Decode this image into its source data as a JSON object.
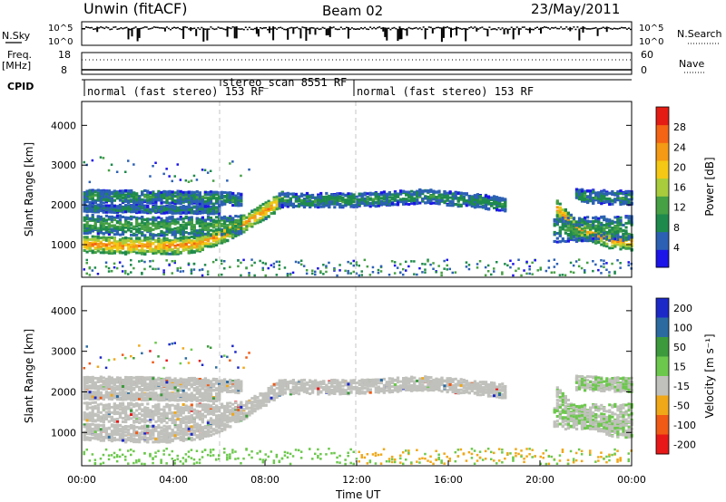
{
  "header": {
    "title": "Unwin (fitACF)",
    "beam": "Beam 02",
    "date": "23/May/2011"
  },
  "top_panels": {
    "nsky_label": "N.Sky",
    "nsearch_label": "N.Search",
    "ticks_noise": [
      "10^5",
      "10^0"
    ],
    "freq_label": "Freq.",
    "freq_unit": "[MHz]",
    "freq_ticks": [
      "18",
      "8"
    ],
    "nave_label": "Nave",
    "nave_ticks": [
      "60",
      "0"
    ],
    "cpid_label": "CPID",
    "cpid_segments": [
      {
        "label": "normal (fast stereo) 153 RF",
        "start_hour": 0,
        "end_hour": 6
      },
      {
        "label": "stereo_scan 8551 RF",
        "start_hour": 6,
        "end_hour": 12
      },
      {
        "label": "normal (fast stereo) 153 RF",
        "start_hour": 12,
        "end_hour": 24
      }
    ]
  },
  "chart_data": [
    {
      "type": "heatmap",
      "quantity": "power",
      "xlabel": "",
      "ylabel": "Slant Range [km]",
      "xlim": [
        0,
        24
      ],
      "ylim": [
        180,
        4600
      ],
      "yticks": [
        "1000",
        "2000",
        "3000",
        "4000"
      ],
      "colorbar": {
        "label": "Power [dB]",
        "ticks": [
          "4",
          "8",
          "12",
          "16",
          "20",
          "24",
          "28"
        ],
        "range": [
          0,
          32
        ]
      },
      "bands": [
        {
          "t": [
            0,
            2,
            4,
            5,
            6,
            7,
            8,
            8.7
          ],
          "r": [
            1050,
            1000,
            1000,
            1050,
            1250,
            1550,
            1900,
            2150
          ],
          "width": 260,
          "level": 26
        },
        {
          "t": [
            0,
            3,
            5.5,
            7
          ],
          "r": [
            1550,
            1500,
            1500,
            1550
          ],
          "width": 300,
          "level": 12
        },
        {
          "t": [
            0,
            3,
            6,
            7
          ],
          "r": [
            2250,
            2230,
            2200,
            2150
          ],
          "width": 200,
          "level": 9
        },
        {
          "t": [
            0,
            3,
            6
          ],
          "r": [
            1950,
            1920,
            1900
          ],
          "width": 120,
          "level": 8
        },
        {
          "t": [
            8.5,
            12,
            15,
            18.5
          ],
          "r": [
            2150,
            2150,
            2250,
            2050
          ],
          "width": 220,
          "level": 9
        },
        {
          "t": [
            20.6,
            21.5,
            23,
            24
          ],
          "r": [
            2000,
            1450,
            1150,
            1100
          ],
          "width": 260,
          "level": 25
        },
        {
          "t": [
            20.5,
            24
          ],
          "r": [
            1400,
            1450
          ],
          "width": 380,
          "level": 10
        },
        {
          "t": [
            21.5,
            24
          ],
          "r": [
            2250,
            2200
          ],
          "width": 220,
          "level": 9
        }
      ]
    },
    {
      "type": "heatmap",
      "quantity": "velocity",
      "xlabel": "Time UT",
      "ylabel": "Slant Range [km]",
      "xlim": [
        0,
        24
      ],
      "ylim": [
        180,
        4600
      ],
      "xticks": [
        "00:00",
        "04:00",
        "08:00",
        "12:00",
        "16:00",
        "20:00",
        "00:00"
      ],
      "yticks": [
        "1000",
        "2000",
        "3000",
        "4000"
      ],
      "colorbar": {
        "label": "Velocity [m s⁻¹]",
        "ticks": [
          "200",
          "100",
          "50",
          "15",
          "-15",
          "-50",
          "-100",
          "-200"
        ]
      },
      "colors": {
        "ground_scatter": "#c0c0bc",
        "neg_velocity": "#f0a818",
        "pos_velocity": "#6cc84c"
      }
    }
  ]
}
